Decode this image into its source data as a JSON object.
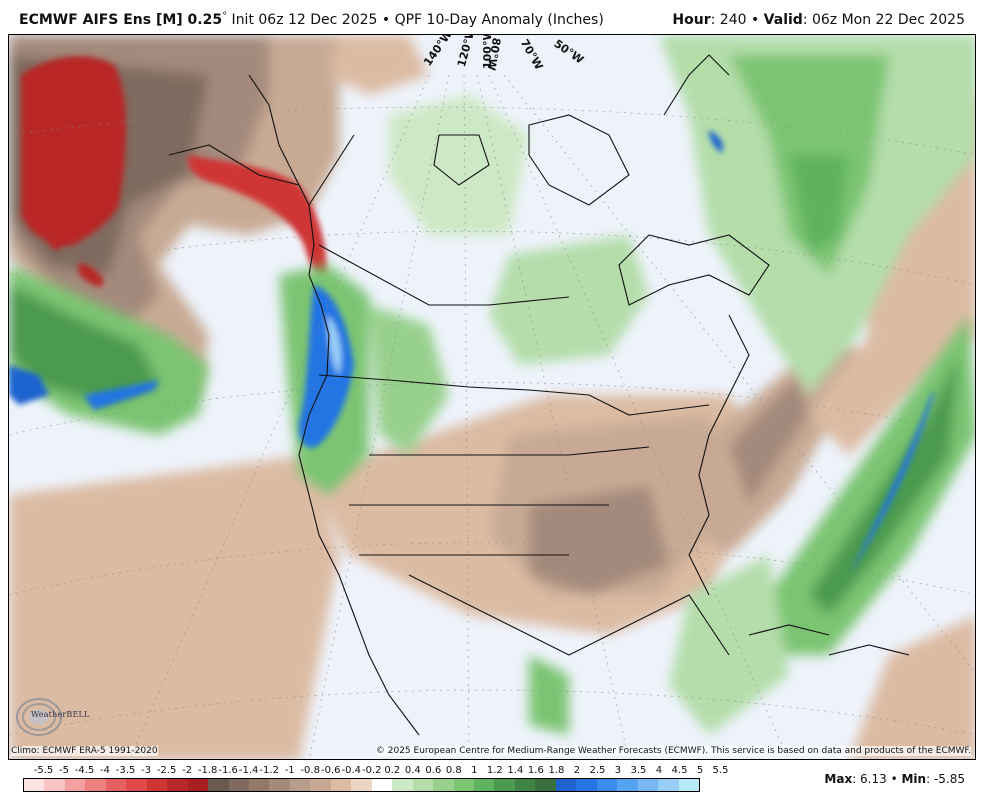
{
  "header": {
    "model": "ECMWF AIFS Ens [M] 0.25",
    "degree": "°",
    "init": " Init 06z 12 Dec 2025 • QPF 10-Day Anomaly (Inches)",
    "hour_label": "Hour",
    "hour_value": ": 240 • ",
    "valid_label": "Valid",
    "valid_value": ": 06z Mon 22 Dec 2025"
  },
  "map": {
    "longitude_labels": [
      "140°W",
      "120°W",
      "100°W",
      "80°W",
      "70°W",
      "50°W"
    ],
    "climo": "Climo: ECMWF ERA-5 1991-2020",
    "copyright": "© 2025 European Centre for Medium-Range Weather Forecasts (ECMWF). This service is based on data and products of the ECMWF.",
    "logo": "WeatherBELL",
    "logo_icon": "weatherbell-swirl-icon"
  },
  "colorbar": {
    "labels": [
      "-5.5",
      "-5",
      "-4.5",
      "-4",
      "-3.5",
      "-3",
      "-2.5",
      "-2",
      "-1.8",
      "-1.6",
      "-1.4",
      "-1.2",
      "-1",
      "-0.8",
      "-0.6",
      "-0.4",
      "-0.2",
      "0.2",
      "0.4",
      "0.6",
      "0.8",
      "1",
      "1.2",
      "1.4",
      "1.6",
      "1.8",
      "2",
      "2.5",
      "3",
      "3.5",
      "4",
      "4.5",
      "5",
      "5.5"
    ],
    "colors": [
      "#fde2e2",
      "#fbc4c4",
      "#f5a0a0",
      "#ee8080",
      "#e66060",
      "#de4848",
      "#cf3535",
      "#b82828",
      "#a81f1f",
      "#6b5a4f",
      "#7f6b5e",
      "#92796a",
      "#a48a7b",
      "#b59c8b",
      "#c8aa94",
      "#dcbba3",
      "#ecd6c4",
      "#ffffff",
      "#cde8c5",
      "#b4ddaa",
      "#98d08d",
      "#7cc472",
      "#5fb35e",
      "#4b9a4f",
      "#3f8444",
      "#386f3c",
      "#1f63cf",
      "#2475e3",
      "#3a8cec",
      "#55a2f1",
      "#76b7f4",
      "#98cdf8",
      "#b7e9f7"
    ]
  },
  "stats": {
    "max_label": "Max",
    "max_value": ": 6.13 • ",
    "min_label": "Min",
    "min_value": ": -5.85"
  }
}
